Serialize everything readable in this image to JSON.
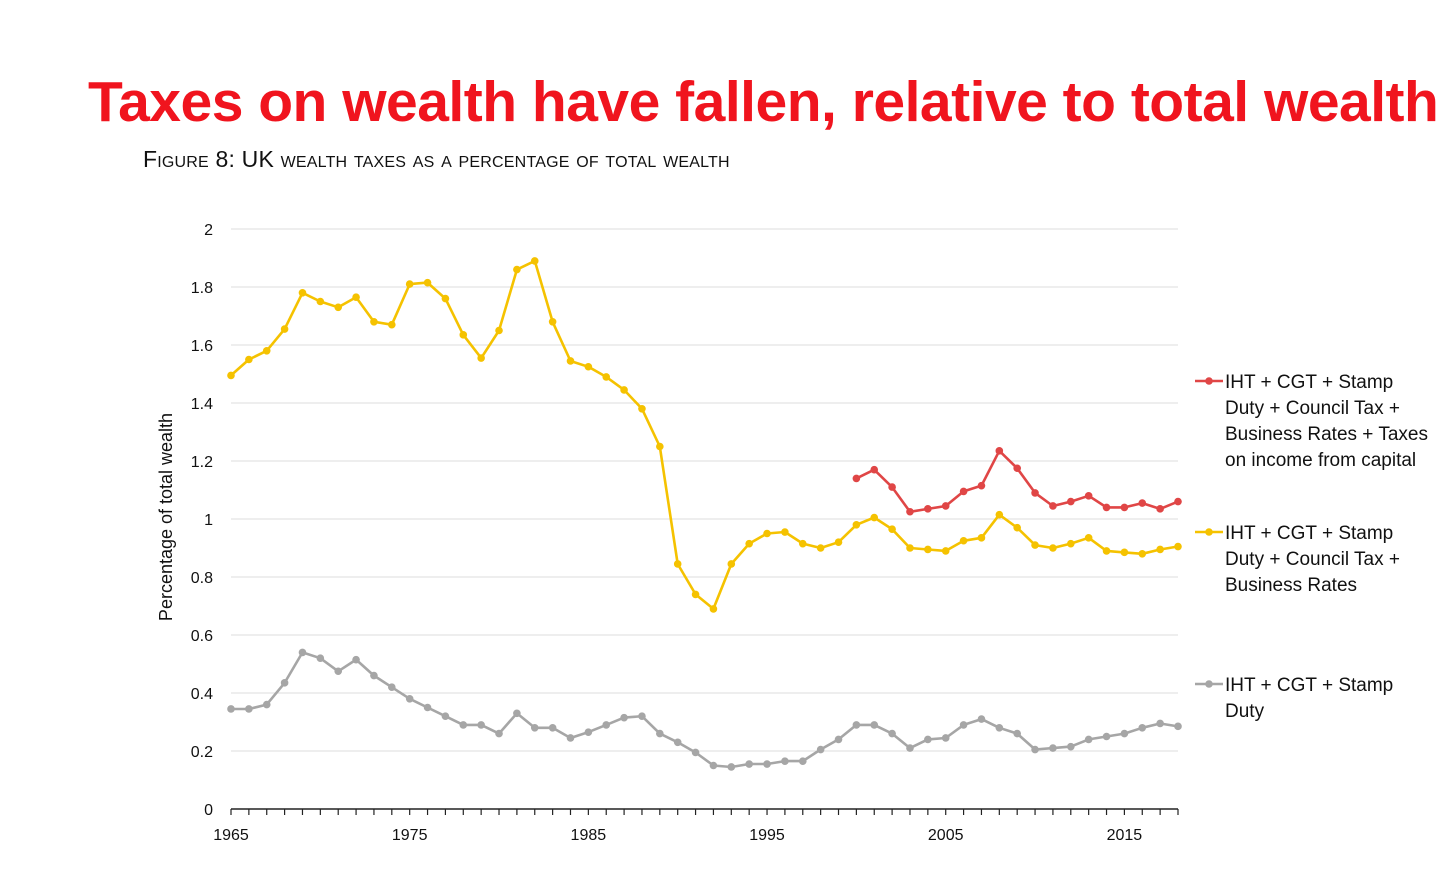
{
  "headline": {
    "text": "Taxes on wealth have fallen, relative to total wealth",
    "color": "#f0141e"
  },
  "figure_title": "Figure 8: UK wealth taxes as a percentage of total wealth",
  "chart_data": {
    "type": "line",
    "title": "Figure 8: UK wealth taxes as a percentage of total wealth",
    "xlabel": "",
    "ylabel": "Percentage of total wealth",
    "xlim": [
      1965,
      2018
    ],
    "ylim": [
      0,
      2
    ],
    "y_ticks": [
      "0",
      "0.2",
      "0.4",
      "0.6",
      "0.8",
      "1",
      "1.2",
      "1.4",
      "1.6",
      "1.8",
      "2"
    ],
    "x_tick_labels": [
      "1965",
      "1975",
      "1985",
      "1995",
      "2005",
      "2015"
    ],
    "grid": "horizontal",
    "legend_position": "right",
    "series": [
      {
        "name": "IHT + CGT + Stamp Duty + Council Tax + Business Rates + Taxes on income from capital",
        "legend_lines": [
          "IHT + CGT + Stamp",
          "Duty + Council Tax +",
          "Business Rates + Taxes",
          "on income from capital"
        ],
        "color": "#e04646",
        "x": [
          2000,
          2001,
          2002,
          2003,
          2004,
          2005,
          2006,
          2007,
          2008,
          2009,
          2010,
          2011,
          2012,
          2013,
          2014,
          2015,
          2016,
          2017,
          2018
        ],
        "y": [
          1.14,
          1.17,
          1.11,
          1.025,
          1.035,
          1.045,
          1.095,
          1.115,
          1.235,
          1.175,
          1.09,
          1.045,
          1.06,
          1.08,
          1.04,
          1.04,
          1.055,
          1.035,
          1.06
        ]
      },
      {
        "name": "IHT + CGT + Stamp Duty + Council Tax + Business Rates",
        "legend_lines": [
          "IHT + CGT + Stamp",
          "Duty + Council Tax +",
          "Business Rates"
        ],
        "color": "#f5c200",
        "x": [
          1965,
          1966,
          1967,
          1968,
          1969,
          1970,
          1971,
          1972,
          1973,
          1974,
          1975,
          1976,
          1977,
          1978,
          1979,
          1980,
          1981,
          1982,
          1983,
          1984,
          1985,
          1986,
          1987,
          1988,
          1989,
          1990,
          1991,
          1992,
          1993,
          1994,
          1995,
          1996,
          1997,
          1998,
          1999,
          2000,
          2001,
          2002,
          2003,
          2004,
          2005,
          2006,
          2007,
          2008,
          2009,
          2010,
          2011,
          2012,
          2013,
          2014,
          2015,
          2016,
          2017,
          2018
        ],
        "y": [
          1.495,
          1.55,
          1.58,
          1.655,
          1.78,
          1.75,
          1.73,
          1.765,
          1.68,
          1.67,
          1.81,
          1.815,
          1.76,
          1.635,
          1.555,
          1.65,
          1.86,
          1.89,
          1.68,
          1.545,
          1.525,
          1.49,
          1.445,
          1.38,
          1.25,
          0.845,
          0.74,
          0.69,
          0.845,
          0.915,
          0.95,
          0.955,
          0.915,
          0.9,
          0.92,
          0.98,
          1.005,
          0.965,
          0.9,
          0.895,
          0.89,
          0.925,
          0.935,
          1.015,
          0.97,
          0.91,
          0.9,
          0.915,
          0.935,
          0.89,
          0.885,
          0.88,
          0.895,
          0.905
        ]
      },
      {
        "name": "IHT + CGT + Stamp Duty",
        "legend_lines": [
          "IHT + CGT + Stamp",
          "Duty"
        ],
        "color": "#a6a6a6",
        "x": [
          1965,
          1966,
          1967,
          1968,
          1969,
          1970,
          1971,
          1972,
          1973,
          1974,
          1975,
          1976,
          1977,
          1978,
          1979,
          1980,
          1981,
          1982,
          1983,
          1984,
          1985,
          1986,
          1987,
          1988,
          1989,
          1990,
          1991,
          1992,
          1993,
          1994,
          1995,
          1996,
          1997,
          1998,
          1999,
          2000,
          2001,
          2002,
          2003,
          2004,
          2005,
          2006,
          2007,
          2008,
          2009,
          2010,
          2011,
          2012,
          2013,
          2014,
          2015,
          2016,
          2017,
          2018
        ],
        "y": [
          0.345,
          0.345,
          0.36,
          0.435,
          0.54,
          0.52,
          0.475,
          0.515,
          0.46,
          0.42,
          0.38,
          0.35,
          0.32,
          0.29,
          0.29,
          0.26,
          0.33,
          0.28,
          0.28,
          0.245,
          0.265,
          0.29,
          0.315,
          0.32,
          0.26,
          0.23,
          0.195,
          0.15,
          0.145,
          0.155,
          0.155,
          0.165,
          0.165,
          0.205,
          0.24,
          0.29,
          0.29,
          0.26,
          0.21,
          0.24,
          0.245,
          0.29,
          0.31,
          0.28,
          0.26,
          0.205,
          0.21,
          0.215,
          0.24,
          0.25,
          0.26,
          0.28,
          0.295,
          0.285
        ]
      }
    ]
  }
}
